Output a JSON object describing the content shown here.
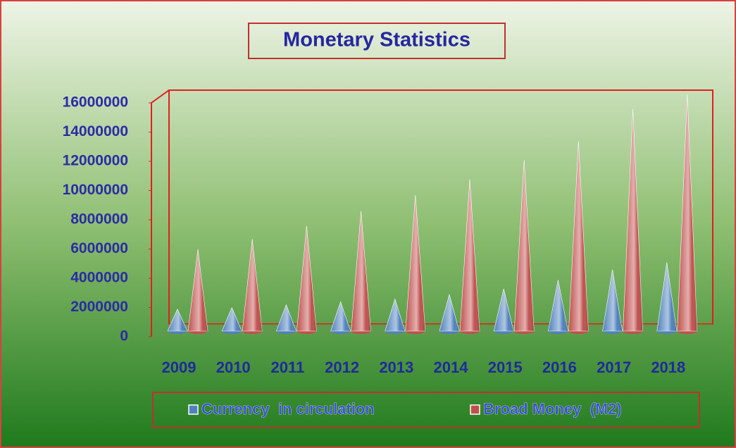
{
  "chart_data": {
    "type": "cone",
    "title": "Monetary Statistics",
    "categories": [
      "2009",
      "2010",
      "2011",
      "2012",
      "2013",
      "2014",
      "2015",
      "2016",
      "2017",
      "2018"
    ],
    "series": [
      {
        "name": "Currency  in circulation",
        "color": "#4f81bd",
        "values": [
          1500000,
          1600000,
          1800000,
          2000000,
          2200000,
          2500000,
          2900000,
          3500000,
          4200000,
          4700000
        ]
      },
      {
        "name": "Broad Money  (M2)",
        "color": "#c0504d",
        "values": [
          5600000,
          6300000,
          7200000,
          8200000,
          9300000,
          10400000,
          11700000,
          13000000,
          15200000,
          16200000
        ]
      }
    ],
    "ylim": [
      0,
      16000000
    ],
    "yticks": [
      0,
      2000000,
      4000000,
      6000000,
      8000000,
      10000000,
      12000000,
      14000000,
      16000000
    ],
    "legend": "bottom"
  }
}
